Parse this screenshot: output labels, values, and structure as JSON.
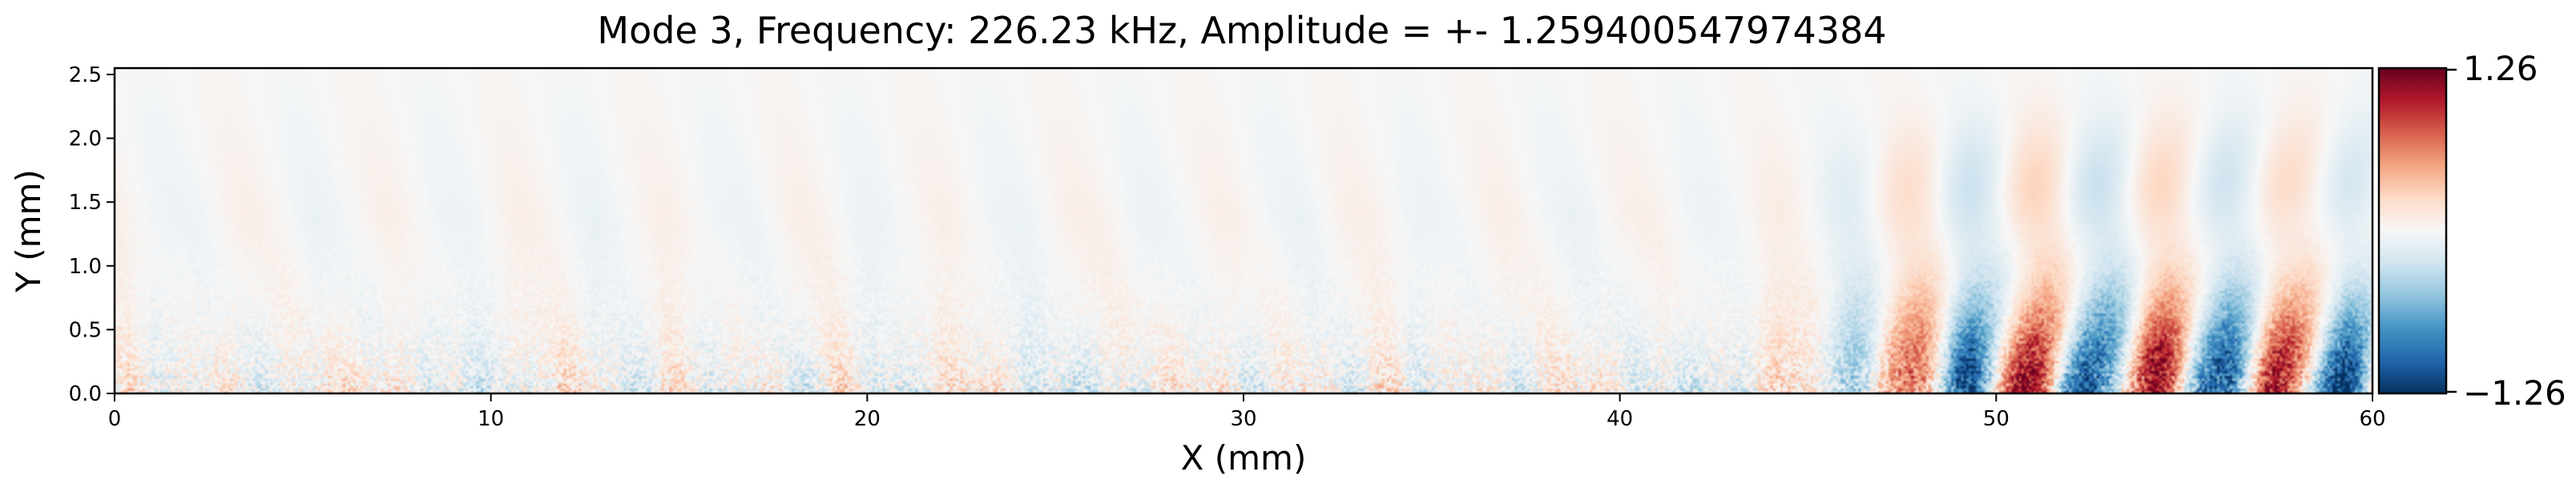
{
  "chart_data": {
    "type": "heatmap",
    "title": "Mode 3, Frequency: 226.23 kHz, Amplitude = +- 1.259400547974384",
    "xlabel": "X (mm)",
    "ylabel": "Y (mm)",
    "xlim": [
      0,
      60
    ],
    "ylim": [
      0,
      2.55
    ],
    "x_ticks": [
      0,
      10,
      20,
      30,
      40,
      50,
      60
    ],
    "x_tick_labels": [
      "0",
      "10",
      "20",
      "30",
      "40",
      "50",
      "60"
    ],
    "y_ticks": [
      0.0,
      0.5,
      1.0,
      1.5,
      2.0,
      2.5
    ],
    "y_tick_labels": [
      "0.0",
      "0.5",
      "1.0",
      "1.5",
      "2.0",
      "2.5"
    ],
    "grid": false,
    "colormap": "RdBu_r",
    "colors": {
      "low": "#053061",
      "mid": "#f7f7f7",
      "high": "#67001f"
    },
    "colorbar": {
      "min": -1.26,
      "max": 1.26,
      "max_label": "1.26",
      "min_label": "−1.26"
    },
    "field_features": {
      "near_wall_noise_amplitude": 0.55,
      "near_wall_thickness_mm": 0.8,
      "wave_packet_start_mm": 45,
      "wave_packet_wavelength_mm": 3.35,
      "wave_packet_amplitude": 1.26,
      "wave_packet_height_mm": 1.3
    }
  }
}
